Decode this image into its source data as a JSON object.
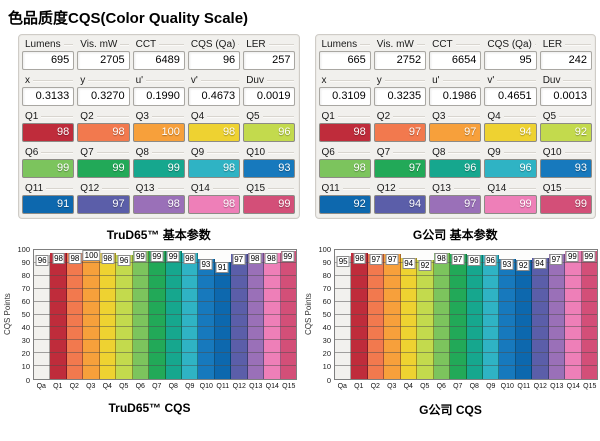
{
  "page": {
    "title": "色品质度CQS(Color Quality Scale)"
  },
  "colors": {
    "qa": "#f2f1ee",
    "q1": "#bf2c3b",
    "q2": "#f2794e",
    "q3": "#f7a03b",
    "q4": "#eed231",
    "q5": "#c3da4d",
    "q6": "#7cc45d",
    "q7": "#22a958",
    "q8": "#16a78e",
    "q9": "#2fb3c4",
    "q10": "#1779bd",
    "q11": "#0d68ae",
    "q12": "#5b5ea9",
    "q13": "#9a70b8",
    "q14": "#ee7fb8",
    "q15": "#d34f78"
  },
  "panels": [
    {
      "caption": "TruD65™ 基本参数",
      "param_rows": [
        [
          {
            "label": "Lumens",
            "value": "695"
          },
          {
            "label": "Vis. mW",
            "value": "2705"
          },
          {
            "label": "CCT",
            "value": "6489"
          },
          {
            "label": "CQS (Qa)",
            "value": "96"
          },
          {
            "label": "LER",
            "value": "257"
          }
        ],
        [
          {
            "label": "x",
            "value": "0.3133"
          },
          {
            "label": "y",
            "value": "0.3270"
          },
          {
            "label": "u'",
            "value": "0.1990"
          },
          {
            "label": "v'",
            "value": "0.4673"
          },
          {
            "label": "Duv",
            "value": "0.0019"
          }
        ]
      ],
      "q_rows": [
        [
          {
            "label": "Q1",
            "value": "98",
            "color": "q1"
          },
          {
            "label": "Q2",
            "value": "98",
            "color": "q2"
          },
          {
            "label": "Q3",
            "value": "100",
            "color": "q3"
          },
          {
            "label": "Q4",
            "value": "98",
            "color": "q4"
          },
          {
            "label": "Q5",
            "value": "96",
            "color": "q5"
          }
        ],
        [
          {
            "label": "Q6",
            "value": "99",
            "color": "q6"
          },
          {
            "label": "Q7",
            "value": "99",
            "color": "q7"
          },
          {
            "label": "Q8",
            "value": "99",
            "color": "q8"
          },
          {
            "label": "Q9",
            "value": "98",
            "color": "q9"
          },
          {
            "label": "Q10",
            "value": "93",
            "color": "q10"
          }
        ],
        [
          {
            "label": "Q11",
            "value": "91",
            "color": "q11"
          },
          {
            "label": "Q12",
            "value": "97",
            "color": "q12"
          },
          {
            "label": "Q13",
            "value": "98",
            "color": "q13"
          },
          {
            "label": "Q14",
            "value": "98",
            "color": "q14"
          },
          {
            "label": "Q15",
            "value": "99",
            "color": "q15"
          }
        ]
      ]
    },
    {
      "caption": "G公司 基本参数",
      "param_rows": [
        [
          {
            "label": "Lumens",
            "value": "665"
          },
          {
            "label": "Vis. mW",
            "value": "2752"
          },
          {
            "label": "CCT",
            "value": "6654"
          },
          {
            "label": "CQS (Qa)",
            "value": "95"
          },
          {
            "label": "LER",
            "value": "242"
          }
        ],
        [
          {
            "label": "x",
            "value": "0.3109"
          },
          {
            "label": "y",
            "value": "0.3235"
          },
          {
            "label": "u'",
            "value": "0.1986"
          },
          {
            "label": "v'",
            "value": "0.4651"
          },
          {
            "label": "Duv",
            "value": "0.0013"
          }
        ]
      ],
      "q_rows": [
        [
          {
            "label": "Q1",
            "value": "98",
            "color": "q1"
          },
          {
            "label": "Q2",
            "value": "97",
            "color": "q2"
          },
          {
            "label": "Q3",
            "value": "97",
            "color": "q3"
          },
          {
            "label": "Q4",
            "value": "94",
            "color": "q4"
          },
          {
            "label": "Q5",
            "value": "92",
            "color": "q5"
          }
        ],
        [
          {
            "label": "Q6",
            "value": "98",
            "color": "q6"
          },
          {
            "label": "Q7",
            "value": "97",
            "color": "q7"
          },
          {
            "label": "Q8",
            "value": "96",
            "color": "q8"
          },
          {
            "label": "Q9",
            "value": "96",
            "color": "q9"
          },
          {
            "label": "Q10",
            "value": "93",
            "color": "q10"
          }
        ],
        [
          {
            "label": "Q11",
            "value": "92",
            "color": "q11"
          },
          {
            "label": "Q12",
            "value": "94",
            "color": "q12"
          },
          {
            "label": "Q13",
            "value": "97",
            "color": "q13"
          },
          {
            "label": "Q14",
            "value": "99",
            "color": "q14"
          },
          {
            "label": "Q15",
            "value": "99",
            "color": "q15"
          }
        ]
      ]
    }
  ],
  "chart_data": [
    {
      "type": "bar",
      "title": "TruD65™ CQS",
      "categories": [
        "Qa",
        "Q1",
        "Q2",
        "Q3",
        "Q4",
        "Q5",
        "Q6",
        "Q7",
        "Q8",
        "Q9",
        "Q10",
        "Q11",
        "Q12",
        "Q13",
        "Q14",
        "Q15"
      ],
      "values": [
        96,
        98,
        98,
        100,
        98,
        96,
        99,
        99,
        99,
        98,
        93,
        91,
        97,
        98,
        98,
        99
      ],
      "xlabel": "",
      "ylabel": "CQS Points",
      "ylim": [
        0,
        100
      ],
      "ytick_step": 10,
      "grid": true,
      "legend": "none",
      "bar_color_keys": [
        "qa",
        "q1",
        "q2",
        "q3",
        "q4",
        "q5",
        "q6",
        "q7",
        "q8",
        "q9",
        "q10",
        "q11",
        "q12",
        "q13",
        "q14",
        "q15"
      ]
    },
    {
      "type": "bar",
      "title": "G公司 CQS",
      "categories": [
        "Qa",
        "Q1",
        "Q2",
        "Q3",
        "Q4",
        "Q5",
        "Q6",
        "Q7",
        "Q8",
        "Q9",
        "Q10",
        "Q11",
        "Q12",
        "Q13",
        "Q14",
        "Q15"
      ],
      "values": [
        95,
        98,
        97,
        97,
        94,
        92,
        98,
        97,
        96,
        96,
        93,
        92,
        94,
        97,
        99,
        99
      ],
      "xlabel": "",
      "ylabel": "CQS Points",
      "ylim": [
        0,
        100
      ],
      "ytick_step": 10,
      "grid": true,
      "legend": "none",
      "bar_color_keys": [
        "qa",
        "q1",
        "q2",
        "q3",
        "q4",
        "q5",
        "q6",
        "q7",
        "q8",
        "q9",
        "q10",
        "q11",
        "q12",
        "q13",
        "q14",
        "q15"
      ]
    }
  ]
}
